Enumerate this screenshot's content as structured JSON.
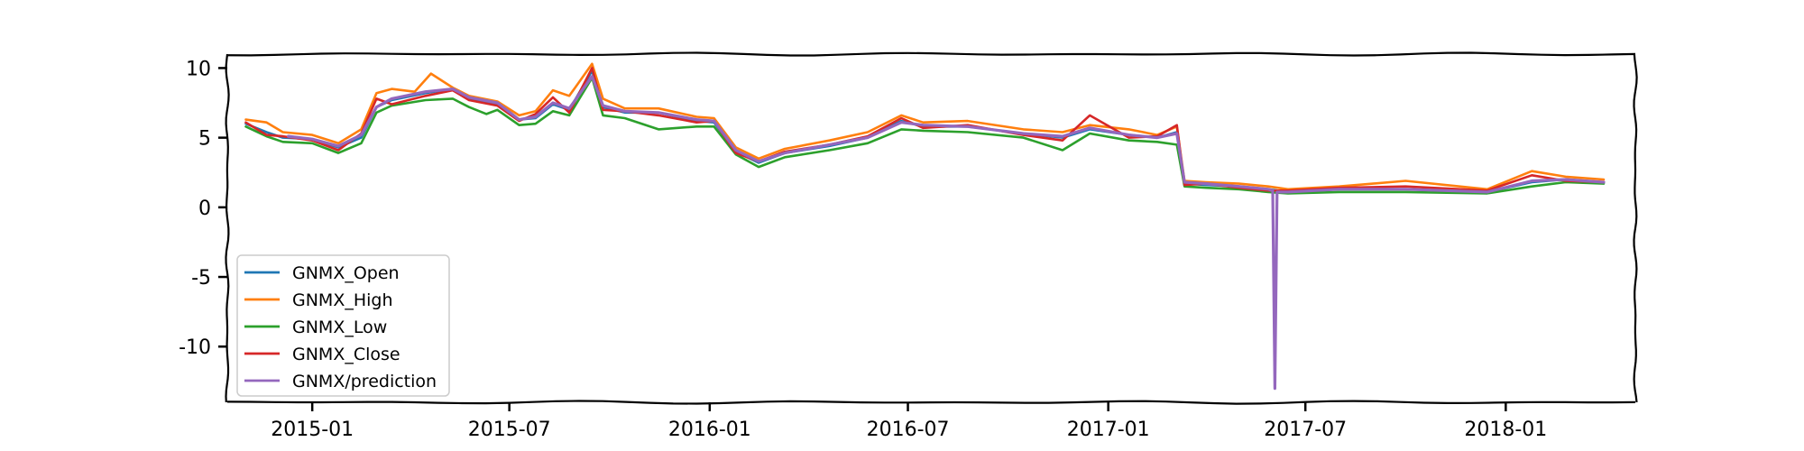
{
  "chart_data": {
    "type": "line",
    "title": "",
    "xlabel": "",
    "ylabel": "",
    "x_range": [
      "2014-10-15",
      "2018-04-30"
    ],
    "ylim": [
      -14,
      11
    ],
    "x_ticks": [
      {
        "date": "2015-01-01",
        "label": "2015-01"
      },
      {
        "date": "2015-07-01",
        "label": "2015-07"
      },
      {
        "date": "2016-01-01",
        "label": "2016-01"
      },
      {
        "date": "2016-07-01",
        "label": "2016-07"
      },
      {
        "date": "2017-01-01",
        "label": "2017-01"
      },
      {
        "date": "2017-07-01",
        "label": "2017-07"
      },
      {
        "date": "2018-01-01",
        "label": "2018-01"
      }
    ],
    "y_ticks": [
      {
        "value": 10,
        "label": "10"
      },
      {
        "value": 5,
        "label": "5"
      },
      {
        "value": 0,
        "label": "0"
      },
      {
        "value": -5,
        "label": "-5"
      },
      {
        "value": -10,
        "label": "-10"
      }
    ],
    "grid": false,
    "legend_position": "lower-left",
    "series": [
      {
        "name": "GNMX_Open",
        "color": "#1f77b4",
        "points": [
          [
            "2014-11-01",
            6.0
          ],
          [
            "2014-11-20",
            5.4
          ],
          [
            "2014-12-05",
            5.0
          ],
          [
            "2015-01-01",
            4.9
          ],
          [
            "2015-01-25",
            4.3
          ],
          [
            "2015-02-15",
            5.0
          ],
          [
            "2015-03-01",
            7.2
          ],
          [
            "2015-03-15",
            7.7
          ],
          [
            "2015-04-15",
            8.2
          ],
          [
            "2015-05-10",
            8.5
          ],
          [
            "2015-05-25",
            7.8
          ],
          [
            "2015-06-20",
            7.4
          ],
          [
            "2015-07-10",
            6.3
          ],
          [
            "2015-07-25",
            6.4
          ],
          [
            "2015-08-10",
            7.4
          ],
          [
            "2015-08-25",
            7.0
          ],
          [
            "2015-09-15",
            9.8
          ],
          [
            "2015-09-25",
            7.2
          ],
          [
            "2015-10-15",
            6.8
          ],
          [
            "2015-11-15",
            6.8
          ],
          [
            "2015-12-20",
            6.2
          ],
          [
            "2016-01-05",
            6.1
          ],
          [
            "2016-01-25",
            4.0
          ],
          [
            "2016-02-15",
            3.2
          ],
          [
            "2016-03-10",
            3.9
          ],
          [
            "2016-04-20",
            4.4
          ],
          [
            "2016-05-25",
            5.0
          ],
          [
            "2016-06-25",
            6.2
          ],
          [
            "2016-07-15",
            5.8
          ],
          [
            "2016-08-25",
            5.8
          ],
          [
            "2016-10-15",
            5.3
          ],
          [
            "2016-11-20",
            5.0
          ],
          [
            "2016-12-15",
            5.6
          ],
          [
            "2017-01-20",
            5.2
          ],
          [
            "2017-02-15",
            5.0
          ],
          [
            "2017-03-05",
            5.4
          ],
          [
            "2017-03-12",
            1.7
          ],
          [
            "2017-04-01",
            1.6
          ],
          [
            "2017-05-01",
            1.5
          ],
          [
            "2017-05-28",
            1.3
          ],
          [
            "2017-06-15",
            1.1
          ],
          [
            "2017-08-01",
            1.3
          ],
          [
            "2017-10-01",
            1.3
          ],
          [
            "2017-12-15",
            1.1
          ],
          [
            "2018-01-25",
            1.8
          ],
          [
            "2018-02-25",
            2.0
          ],
          [
            "2018-04-01",
            1.8
          ]
        ]
      },
      {
        "name": "GNMX_High",
        "color": "#ff7f0e",
        "points": [
          [
            "2014-11-01",
            6.3
          ],
          [
            "2014-11-20",
            6.1
          ],
          [
            "2014-12-05",
            5.4
          ],
          [
            "2015-01-01",
            5.2
          ],
          [
            "2015-01-25",
            4.6
          ],
          [
            "2015-02-15",
            5.6
          ],
          [
            "2015-03-01",
            8.2
          ],
          [
            "2015-03-15",
            8.5
          ],
          [
            "2015-04-05",
            8.3
          ],
          [
            "2015-04-20",
            9.6
          ],
          [
            "2015-05-10",
            8.6
          ],
          [
            "2015-05-25",
            8.0
          ],
          [
            "2015-06-20",
            7.6
          ],
          [
            "2015-07-10",
            6.6
          ],
          [
            "2015-07-25",
            6.9
          ],
          [
            "2015-08-10",
            8.4
          ],
          [
            "2015-08-25",
            8.0
          ],
          [
            "2015-09-15",
            10.3
          ],
          [
            "2015-09-25",
            7.8
          ],
          [
            "2015-10-15",
            7.1
          ],
          [
            "2015-11-15",
            7.1
          ],
          [
            "2015-12-20",
            6.5
          ],
          [
            "2016-01-05",
            6.4
          ],
          [
            "2016-01-25",
            4.3
          ],
          [
            "2016-02-15",
            3.5
          ],
          [
            "2016-03-10",
            4.2
          ],
          [
            "2016-04-20",
            4.8
          ],
          [
            "2016-05-25",
            5.4
          ],
          [
            "2016-06-25",
            6.6
          ],
          [
            "2016-07-15",
            6.1
          ],
          [
            "2016-08-25",
            6.2
          ],
          [
            "2016-10-15",
            5.6
          ],
          [
            "2016-11-20",
            5.4
          ],
          [
            "2016-12-15",
            5.9
          ],
          [
            "2017-01-20",
            5.6
          ],
          [
            "2017-02-15",
            5.2
          ],
          [
            "2017-03-05",
            5.8
          ],
          [
            "2017-03-12",
            1.9
          ],
          [
            "2017-04-01",
            1.8
          ],
          [
            "2017-05-01",
            1.7
          ],
          [
            "2017-05-28",
            1.5
          ],
          [
            "2017-06-15",
            1.3
          ],
          [
            "2017-08-01",
            1.5
          ],
          [
            "2017-10-01",
            1.9
          ],
          [
            "2017-12-15",
            1.3
          ],
          [
            "2018-01-25",
            2.6
          ],
          [
            "2018-02-25",
            2.2
          ],
          [
            "2018-04-01",
            2.0
          ]
        ]
      },
      {
        "name": "GNMX_Low",
        "color": "#2ca02c",
        "points": [
          [
            "2014-11-01",
            5.8
          ],
          [
            "2014-11-20",
            5.1
          ],
          [
            "2014-12-05",
            4.7
          ],
          [
            "2015-01-01",
            4.6
          ],
          [
            "2015-01-25",
            3.9
          ],
          [
            "2015-02-15",
            4.6
          ],
          [
            "2015-03-01",
            6.8
          ],
          [
            "2015-03-15",
            7.3
          ],
          [
            "2015-04-15",
            7.7
          ],
          [
            "2015-05-10",
            7.8
          ],
          [
            "2015-05-25",
            7.2
          ],
          [
            "2015-06-10",
            6.7
          ],
          [
            "2015-06-20",
            7.0
          ],
          [
            "2015-07-10",
            5.9
          ],
          [
            "2015-07-25",
            6.0
          ],
          [
            "2015-08-10",
            6.9
          ],
          [
            "2015-08-25",
            6.6
          ],
          [
            "2015-09-15",
            9.3
          ],
          [
            "2015-09-25",
            6.6
          ],
          [
            "2015-10-15",
            6.4
          ],
          [
            "2015-11-15",
            5.6
          ],
          [
            "2015-12-20",
            5.8
          ],
          [
            "2016-01-05",
            5.8
          ],
          [
            "2016-01-25",
            3.8
          ],
          [
            "2016-02-15",
            2.9
          ],
          [
            "2016-03-10",
            3.6
          ],
          [
            "2016-04-20",
            4.1
          ],
          [
            "2016-05-25",
            4.6
          ],
          [
            "2016-06-25",
            5.6
          ],
          [
            "2016-07-15",
            5.5
          ],
          [
            "2016-08-25",
            5.4
          ],
          [
            "2016-10-15",
            5.0
          ],
          [
            "2016-11-20",
            4.1
          ],
          [
            "2016-12-15",
            5.3
          ],
          [
            "2017-01-20",
            4.8
          ],
          [
            "2017-02-15",
            4.7
          ],
          [
            "2017-03-05",
            4.5
          ],
          [
            "2017-03-12",
            1.5
          ],
          [
            "2017-04-01",
            1.4
          ],
          [
            "2017-05-01",
            1.3
          ],
          [
            "2017-05-28",
            1.1
          ],
          [
            "2017-06-15",
            1.0
          ],
          [
            "2017-08-01",
            1.1
          ],
          [
            "2017-10-01",
            1.1
          ],
          [
            "2017-12-15",
            1.0
          ],
          [
            "2018-01-25",
            1.5
          ],
          [
            "2018-02-25",
            1.8
          ],
          [
            "2018-04-01",
            1.7
          ]
        ]
      },
      {
        "name": "GNMX_Close",
        "color": "#d62728",
        "points": [
          [
            "2014-11-01",
            6.1
          ],
          [
            "2014-11-20",
            5.2
          ],
          [
            "2014-12-05",
            5.1
          ],
          [
            "2015-01-01",
            4.8
          ],
          [
            "2015-01-25",
            4.1
          ],
          [
            "2015-02-15",
            5.3
          ],
          [
            "2015-03-01",
            7.8
          ],
          [
            "2015-03-15",
            7.4
          ],
          [
            "2015-04-15",
            8.0
          ],
          [
            "2015-05-10",
            8.4
          ],
          [
            "2015-05-25",
            7.7
          ],
          [
            "2015-06-20",
            7.3
          ],
          [
            "2015-07-10",
            6.2
          ],
          [
            "2015-07-25",
            6.7
          ],
          [
            "2015-08-10",
            7.9
          ],
          [
            "2015-08-25",
            6.8
          ],
          [
            "2015-09-15",
            10.0
          ],
          [
            "2015-09-25",
            7.0
          ],
          [
            "2015-10-15",
            6.9
          ],
          [
            "2015-11-15",
            6.6
          ],
          [
            "2015-12-20",
            6.1
          ],
          [
            "2016-01-05",
            6.2
          ],
          [
            "2016-01-25",
            3.9
          ],
          [
            "2016-02-15",
            3.3
          ],
          [
            "2016-03-10",
            4.0
          ],
          [
            "2016-04-20",
            4.5
          ],
          [
            "2016-05-25",
            5.1
          ],
          [
            "2016-06-25",
            6.4
          ],
          [
            "2016-07-15",
            5.7
          ],
          [
            "2016-08-25",
            5.9
          ],
          [
            "2016-10-15",
            5.2
          ],
          [
            "2016-11-20",
            4.8
          ],
          [
            "2016-12-15",
            6.6
          ],
          [
            "2017-01-20",
            5.0
          ],
          [
            "2017-02-15",
            5.1
          ],
          [
            "2017-03-05",
            5.9
          ],
          [
            "2017-03-12",
            1.6
          ],
          [
            "2017-04-01",
            1.7
          ],
          [
            "2017-05-01",
            1.4
          ],
          [
            "2017-05-28",
            1.2
          ],
          [
            "2017-06-15",
            1.2
          ],
          [
            "2017-08-01",
            1.4
          ],
          [
            "2017-10-01",
            1.5
          ],
          [
            "2017-12-15",
            1.2
          ],
          [
            "2018-01-25",
            2.3
          ],
          [
            "2018-02-25",
            1.9
          ],
          [
            "2018-04-01",
            1.8
          ]
        ]
      },
      {
        "name": "GNMX/prediction",
        "color": "#9467bd",
        "points": [
          [
            "2014-12-10",
            5.1
          ],
          [
            "2015-01-01",
            4.9
          ],
          [
            "2015-01-25",
            4.4
          ],
          [
            "2015-02-15",
            5.2
          ],
          [
            "2015-03-01",
            7.2
          ],
          [
            "2015-03-15",
            7.8
          ],
          [
            "2015-04-15",
            8.3
          ],
          [
            "2015-05-10",
            8.5
          ],
          [
            "2015-05-25",
            7.9
          ],
          [
            "2015-06-20",
            7.5
          ],
          [
            "2015-07-10",
            6.3
          ],
          [
            "2015-07-25",
            6.5
          ],
          [
            "2015-08-10",
            7.5
          ],
          [
            "2015-08-25",
            7.1
          ],
          [
            "2015-09-15",
            9.4
          ],
          [
            "2015-09-25",
            7.3
          ],
          [
            "2015-10-15",
            6.9
          ],
          [
            "2015-11-15",
            6.8
          ],
          [
            "2015-12-20",
            6.3
          ],
          [
            "2016-01-05",
            6.2
          ],
          [
            "2016-01-25",
            4.1
          ],
          [
            "2016-02-15",
            3.3
          ],
          [
            "2016-03-10",
            3.9
          ],
          [
            "2016-04-20",
            4.5
          ],
          [
            "2016-05-25",
            5.0
          ],
          [
            "2016-06-25",
            6.1
          ],
          [
            "2016-07-15",
            5.9
          ],
          [
            "2016-08-25",
            5.8
          ],
          [
            "2016-10-15",
            5.3
          ],
          [
            "2016-11-20",
            5.1
          ],
          [
            "2016-12-15",
            5.7
          ],
          [
            "2017-01-20",
            5.2
          ],
          [
            "2017-02-15",
            5.0
          ],
          [
            "2017-03-05",
            5.3
          ],
          [
            "2017-03-12",
            1.8
          ],
          [
            "2017-04-01",
            1.7
          ],
          [
            "2017-05-01",
            1.5
          ],
          [
            "2017-05-28",
            1.3
          ],
          [
            "2017-06-01",
            1.2
          ],
          [
            "2017-06-03",
            -13.0
          ],
          [
            "2017-06-05",
            1.1
          ],
          [
            "2017-06-15",
            1.1
          ],
          [
            "2017-08-01",
            1.3
          ],
          [
            "2017-10-01",
            1.3
          ],
          [
            "2017-12-15",
            1.1
          ],
          [
            "2018-01-25",
            1.9
          ],
          [
            "2018-02-25",
            2.0
          ],
          [
            "2018-04-01",
            1.8
          ]
        ]
      }
    ]
  }
}
